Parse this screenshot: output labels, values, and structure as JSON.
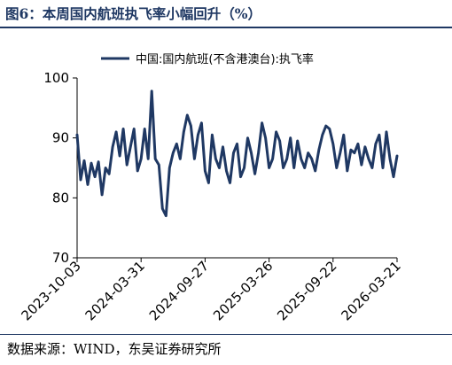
{
  "figure": {
    "title": "图6：本周国内航班执飞率小幅回升（%）",
    "source": "数据来源：WIND，东吴证券研究所"
  },
  "chart_data": {
    "type": "line",
    "legend": {
      "position": "top-center"
    },
    "grid": false,
    "xlim": [
      "2023-10-03",
      "2026-03-21"
    ],
    "ylim": [
      70,
      100
    ],
    "yticks": [
      70,
      80,
      90,
      100
    ],
    "xticks": [
      "2023-10-03",
      "2024-03-31",
      "2024-09-27",
      "2025-03-26",
      "2025-09-22",
      "2026-03-21"
    ],
    "colors": {
      "series": "#1f3863",
      "axis": "#000000"
    },
    "series": [
      {
        "name": "中国:国内航班(不含港澳台):执飞率",
        "x": [
          "2023-10-03",
          "2023-10-13",
          "2023-10-23",
          "2023-11-02",
          "2023-11-12",
          "2023-11-22",
          "2023-12-02",
          "2023-12-12",
          "2023-12-22",
          "2024-01-01",
          "2024-01-11",
          "2024-01-21",
          "2024-01-31",
          "2024-02-10",
          "2024-02-20",
          "2024-03-01",
          "2024-03-11",
          "2024-03-21",
          "2024-03-31",
          "2024-04-10",
          "2024-04-20",
          "2024-04-30",
          "2024-05-10",
          "2024-05-20",
          "2024-05-30",
          "2024-06-09",
          "2024-06-19",
          "2024-06-29",
          "2024-07-09",
          "2024-07-19",
          "2024-07-29",
          "2024-08-08",
          "2024-08-18",
          "2024-08-28",
          "2024-09-07",
          "2024-09-17",
          "2024-09-27",
          "2024-10-07",
          "2024-10-17",
          "2024-10-27",
          "2024-11-06",
          "2024-11-16",
          "2024-11-26",
          "2024-12-06",
          "2024-12-16",
          "2024-12-26",
          "2025-01-05",
          "2025-01-15",
          "2025-01-25",
          "2025-02-04",
          "2025-02-14",
          "2025-02-24",
          "2025-03-06",
          "2025-03-16",
          "2025-03-26",
          "2025-04-05",
          "2025-04-15",
          "2025-04-25",
          "2025-05-05",
          "2025-05-15",
          "2025-05-25",
          "2025-06-04",
          "2025-06-14",
          "2025-06-24",
          "2025-07-04",
          "2025-07-14",
          "2025-07-24",
          "2025-08-03",
          "2025-08-13",
          "2025-08-23",
          "2025-09-02",
          "2025-09-12",
          "2025-09-22",
          "2025-10-02",
          "2025-10-12",
          "2025-10-22",
          "2025-11-01",
          "2025-11-11",
          "2025-11-21",
          "2025-12-01",
          "2025-12-11",
          "2025-12-21",
          "2025-12-31",
          "2026-01-10",
          "2026-01-20",
          "2026-01-30",
          "2026-02-09",
          "2026-02-19",
          "2026-03-01",
          "2026-03-11",
          "2026-03-21"
        ],
        "values": [
          90.5,
          83.0,
          86.2,
          82.2,
          85.8,
          83.5,
          86.0,
          80.5,
          85.0,
          84.0,
          88.5,
          91.0,
          87.0,
          91.5,
          85.5,
          88.5,
          91.5,
          84.5,
          86.5,
          91.5,
          86.5,
          97.8,
          86.5,
          85.5,
          78.2,
          77.0,
          85.0,
          87.5,
          89.0,
          86.5,
          91.0,
          93.8,
          92.0,
          86.5,
          90.5,
          92.5,
          84.5,
          82.5,
          90.5,
          86.5,
          85.0,
          88.5,
          84.5,
          82.5,
          87.5,
          89.0,
          83.5,
          85.0,
          90.0,
          87.5,
          84.0,
          87.5,
          92.5,
          90.0,
          85.0,
          86.5,
          91.0,
          89.5,
          85.0,
          86.5,
          90.0,
          85.0,
          89.5,
          86.5,
          85.0,
          87.5,
          86.5,
          84.5,
          88.0,
          90.5,
          92.0,
          91.5,
          89.0,
          85.0,
          87.5,
          90.5,
          84.5,
          88.0,
          87.5,
          89.0,
          85.5,
          88.5,
          86.5,
          85.0,
          89.0,
          90.5,
          85.0,
          91.0,
          86.5,
          83.5,
          87.0
        ]
      }
    ]
  }
}
